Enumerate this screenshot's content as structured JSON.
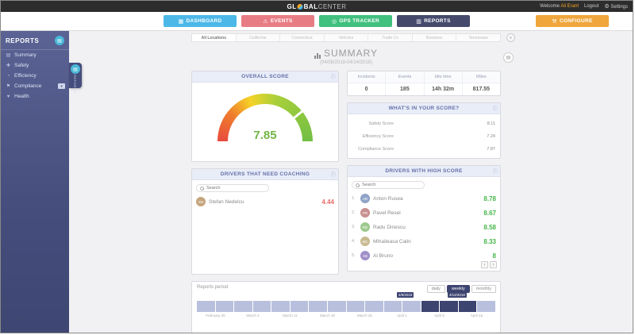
{
  "colors": {
    "nav_dashboard": "#4cb8e8",
    "nav_events": "#e87c84",
    "nav_gps": "#41c07e",
    "nav_reports": "#454a6d",
    "nav_configure": "#f0a63c",
    "sidebar": "#454d7c",
    "accent_lavender": "#e9edf8",
    "score_good": "#45b649",
    "score_bad": "#e86a6a",
    "selection_dark": "#3d4470"
  },
  "topbar": {
    "brand_left": "GL",
    "brand_right": "BAL",
    "brand_lite": "CENTER",
    "welcome": "Welcome",
    "user": "Ali Erant",
    "logout": "Logout",
    "gear_icon": "⚙",
    "settings": "Settings"
  },
  "nav": {
    "items": [
      {
        "label": "DASHBOARD",
        "icon": "▦"
      },
      {
        "label": "EVENTS",
        "icon": "⚠"
      },
      {
        "label": "GPS TRACKER",
        "icon": "◎"
      },
      {
        "label": "REPORTS",
        "icon": "▥"
      },
      {
        "label": "CONFIGURE",
        "icon": "⚒"
      }
    ]
  },
  "sidebar": {
    "title": "REPORTS",
    "circle_icon": "▤",
    "items": [
      {
        "label": "Summary",
        "icon": "▤"
      },
      {
        "label": "Safety",
        "icon": "✚"
      },
      {
        "label": "Efficiency",
        "icon": "◔"
      },
      {
        "label": "Compliance",
        "icon": "⚑"
      },
      {
        "label": "Health",
        "icon": "♥"
      }
    ],
    "compliance_badge": "▾",
    "flyout_label": "REPORTS"
  },
  "tabs": {
    "items": [
      "All Locations",
      "California",
      "Connecticut",
      "Vehicles",
      "Trade Co",
      "Business",
      "Tennessee"
    ],
    "overflow_icon": "≡"
  },
  "summary": {
    "title": "SUMMARY",
    "date_range": "(04/08/2018-04/14/2018)",
    "print_icon": "▤"
  },
  "overall_score": {
    "title": "OVERALL SCORE",
    "info_icon": "ⓘ",
    "value": "7.85"
  },
  "stats": {
    "columns": [
      {
        "label": "Incidents",
        "value": "0"
      },
      {
        "label": "Events",
        "value": "185"
      },
      {
        "label": "Idle time",
        "value": "14h 32m"
      },
      {
        "label": "Miles",
        "value": "817.55"
      }
    ]
  },
  "score_breakdown": {
    "title": "WHAT'S IN YOUR SCORE?",
    "info_icon": "ⓘ",
    "bars": [
      {
        "label": "Safety Score",
        "value": "8.11",
        "color": "#4a90d9",
        "pct": 81,
        "bar_style": "width:81%;background:#4a90d9"
      },
      {
        "label": "Efficiency Score",
        "value": "7.24",
        "color": "#2fbf9f",
        "pct": 72,
        "bar_style": "width:72%;background:#2fbf9f"
      },
      {
        "label": "Compliance Score",
        "value": "7.87",
        "color": "#f5a623",
        "pct": 79,
        "bar_style": "width:79%;background:#f5a623"
      }
    ]
  },
  "coaching": {
    "title": "DRIVERS THAT NEED COACHING",
    "info_icon": "ⓘ",
    "search_placeholder": "Search",
    "rows": [
      {
        "name": "Stefan Nedelcu",
        "score": "4.44",
        "initials": "SN",
        "avatar_style": "background:#c5a57e"
      }
    ]
  },
  "high_score": {
    "title": "DRIVERS WITH HIGH SCORE",
    "info_icon": "ⓘ",
    "search_placeholder": "Search",
    "rows": [
      {
        "rank": "1.",
        "name": "Anton Rusea",
        "score": "8.78",
        "initials": "AR",
        "avatar_style": "background:#8fa3c8"
      },
      {
        "rank": "2.",
        "name": "Pavel Resel",
        "score": "8.67",
        "initials": "PR",
        "avatar_style": "background:#c88f8f"
      },
      {
        "rank": "3.",
        "name": "Radu Dinescu",
        "score": "8.58",
        "initials": "RD",
        "avatar_style": "background:#9ec98f"
      },
      {
        "rank": "4.",
        "name": "Mihaileasa Calin",
        "score": "8.33",
        "initials": "MC",
        "avatar_style": "background:#c8b98f"
      },
      {
        "rank": "5.",
        "name": "Al Bruno",
        "score": "8",
        "initials": "AB",
        "avatar_style": "background:#a08fc8"
      }
    ],
    "pager_prev": "‹",
    "pager_next": "›"
  },
  "period": {
    "title": "Reports period",
    "buttons": [
      "daily",
      "weekly",
      "monthly"
    ],
    "active_button": "weekly",
    "start_label": "4/8/2018",
    "end_label": "4/14/2018",
    "segments": {
      "count": 16,
      "selected": [
        12,
        13,
        14
      ]
    },
    "axis_labels": [
      "February 25",
      "March 4",
      "March 11",
      "March 18",
      "March 25",
      "April 1",
      "April 8",
      "April 15"
    ]
  }
}
